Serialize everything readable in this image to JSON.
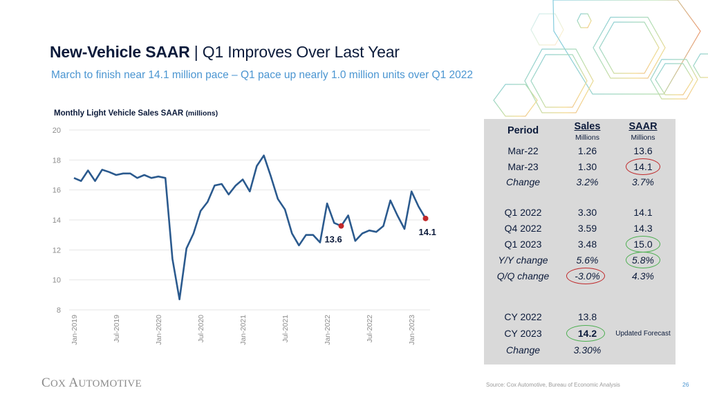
{
  "slide": {
    "title_bold": "New-Vehicle SAAR",
    "title_rest": " | Q1 Improves Over Last Year",
    "subtitle": "March to finish near 14.1 million pace – Q1 pace up nearly 1.0 million units over Q1 2022",
    "source": "Source: Cox Automotive, Bureau of Economic Analysis",
    "page_number": "26",
    "logo": {
      "first_cap": "C",
      "first_rest": "OX ",
      "second_cap": "A",
      "second_rest": "UTOMOTIVE"
    },
    "colors": {
      "title": "#0c1b3b",
      "subtitle": "#4a95d1",
      "line": "#2b5a8e",
      "marker": "#c0282a",
      "panel": "#d9d9d9",
      "circle_red": "#c0282a",
      "circle_green": "#4caf50"
    }
  },
  "chart_data": {
    "type": "line",
    "title": "Monthly Light Vehicle Sales SAAR",
    "title_units": "(millions)",
    "xlabel": "",
    "ylabel": "",
    "ylim": [
      8,
      20
    ],
    "yticks": [
      8,
      10,
      12,
      14,
      16,
      18,
      20
    ],
    "grid": true,
    "x_tick_labels": [
      "Jan-2019",
      "Jul-2019",
      "Jan-2020",
      "Jul-2020",
      "Jan-2021",
      "Jul-2021",
      "Jan-2022",
      "Jul-2022",
      "Jan-2023"
    ],
    "x_tick_index": [
      0,
      6,
      12,
      18,
      24,
      30,
      36,
      42,
      48
    ],
    "x": [
      "Jan-2019",
      "Feb-2019",
      "Mar-2019",
      "Apr-2019",
      "May-2019",
      "Jun-2019",
      "Jul-2019",
      "Aug-2019",
      "Sep-2019",
      "Oct-2019",
      "Nov-2019",
      "Dec-2019",
      "Jan-2020",
      "Feb-2020",
      "Mar-2020",
      "Apr-2020",
      "May-2020",
      "Jun-2020",
      "Jul-2020",
      "Aug-2020",
      "Sep-2020",
      "Oct-2020",
      "Nov-2020",
      "Dec-2020",
      "Jan-2021",
      "Feb-2021",
      "Mar-2021",
      "Apr-2021",
      "May-2021",
      "Jun-2021",
      "Jul-2021",
      "Aug-2021",
      "Sep-2021",
      "Oct-2021",
      "Nov-2021",
      "Dec-2021",
      "Jan-2022",
      "Feb-2022",
      "Mar-2022",
      "Apr-2022",
      "May-2022",
      "Jun-2022",
      "Jul-2022",
      "Aug-2022",
      "Sep-2022",
      "Oct-2022",
      "Nov-2022",
      "Dec-2022",
      "Jan-2023",
      "Feb-2023",
      "Mar-2023"
    ],
    "series": [
      {
        "name": "SAAR",
        "values": [
          16.8,
          16.6,
          17.3,
          16.6,
          17.35,
          17.2,
          17.0,
          17.1,
          17.1,
          16.8,
          17.0,
          16.8,
          16.9,
          16.8,
          11.4,
          8.7,
          12.1,
          13.1,
          14.6,
          15.2,
          16.3,
          16.4,
          15.7,
          16.3,
          16.7,
          15.9,
          17.6,
          18.3,
          16.9,
          15.4,
          14.7,
          13.1,
          12.3,
          13.0,
          13.0,
          12.5,
          15.1,
          13.8,
          13.6,
          14.3,
          12.6,
          13.1,
          13.3,
          13.2,
          13.6,
          15.3,
          14.3,
          13.4,
          15.9,
          14.9,
          14.1
        ]
      }
    ],
    "annotations": [
      {
        "x": "Mar-2022",
        "value": 13.6,
        "label": "13.6"
      },
      {
        "x": "Mar-2023",
        "value": 14.1,
        "label": "14.1"
      }
    ]
  },
  "table": {
    "headers": {
      "period": "Period",
      "sales": "Sales",
      "saar": "SAAR",
      "sales_units": "Millions",
      "saar_units": "Millions"
    },
    "rows": [
      {
        "period": "Mar-22",
        "sales": "1.26",
        "saar": "13.6",
        "style": "normal"
      },
      {
        "period": "Mar-23",
        "sales": "1.30",
        "saar": "14.1",
        "style": "normal",
        "circle_saar": "red"
      },
      {
        "period": "Change",
        "sales": "3.2%",
        "saar": "3.7%",
        "style": "italic"
      },
      {
        "period": "Q1 2022",
        "sales": "3.30",
        "saar": "14.1",
        "style": "normal"
      },
      {
        "period": "Q4 2022",
        "sales": "3.59",
        "saar": "14.3",
        "style": "normal"
      },
      {
        "period": "Q1 2023",
        "sales": "3.48",
        "saar": "15.0",
        "style": "normal",
        "circle_saar": "green"
      },
      {
        "period": "Y/Y change",
        "sales": "5.6%",
        "saar": "5.8%",
        "style": "italic",
        "circle_saar": "green"
      },
      {
        "period": "Q/Q change",
        "sales": "-3.0%",
        "saar": "4.3%",
        "style": "italic",
        "circle_sales": "red"
      },
      {
        "period": "CY 2022",
        "sales": "13.8",
        "saar": "",
        "style": "normal"
      },
      {
        "period": "CY 2023",
        "sales": "14.2",
        "saar": "",
        "note": "Updated Forecast",
        "style": "normal",
        "sales_bold": true,
        "circle_sales": "green"
      },
      {
        "period": "Change",
        "sales": "3.30%",
        "saar": "",
        "style": "italic"
      }
    ]
  }
}
